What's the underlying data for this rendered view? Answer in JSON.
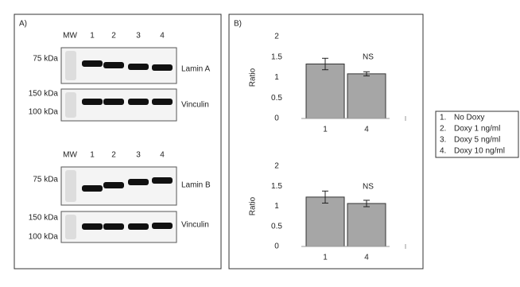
{
  "panel_a": {
    "label": "A)",
    "groups": [
      {
        "mw": "MW",
        "lanes": [
          "1",
          "2",
          "3",
          "4"
        ],
        "blots": [
          {
            "name": "Lamin A",
            "markers": [
              "75 kDa"
            ]
          },
          {
            "name": "Vinculin",
            "markers": [
              "150 kDa",
              "100 kDa"
            ]
          }
        ]
      },
      {
        "mw": "MW",
        "lanes": [
          "1",
          "2",
          "3",
          "4"
        ],
        "blots": [
          {
            "name": "Lamin B",
            "markers": [
              "75 kDa"
            ]
          },
          {
            "name": "Vinculin",
            "markers": [
              "150 kDa",
              "100 kDa"
            ]
          }
        ]
      }
    ]
  },
  "panel_b": {
    "label": "B)"
  },
  "chart_data": [
    {
      "type": "bar",
      "ylabel": "Ratio",
      "categories": [
        "1",
        "4"
      ],
      "values": [
        1.33,
        1.09
      ],
      "errors": [
        0.14,
        0.05
      ],
      "color": "#a6a6a6",
      "ylim": [
        0,
        2
      ],
      "yticks": [
        0,
        0.5,
        1,
        1.5,
        2
      ],
      "annotation": "NS"
    },
    {
      "type": "bar",
      "ylabel": "Ratio",
      "categories": [
        "1",
        "4"
      ],
      "values": [
        1.23,
        1.07
      ],
      "errors": [
        0.15,
        0.08
      ],
      "color": "#a6a6a6",
      "ylim": [
        0,
        2
      ],
      "yticks": [
        0,
        0.5,
        1,
        1.5,
        2
      ],
      "annotation": "NS"
    }
  ],
  "legend": [
    {
      "num": "1.",
      "label": "No Doxy"
    },
    {
      "num": "2.",
      "label": "Doxy 1 ng/ml"
    },
    {
      "num": "3.",
      "label": "Doxy 5 ng/ml"
    },
    {
      "num": "4.",
      "label": "Doxy 10 ng/ml"
    }
  ]
}
